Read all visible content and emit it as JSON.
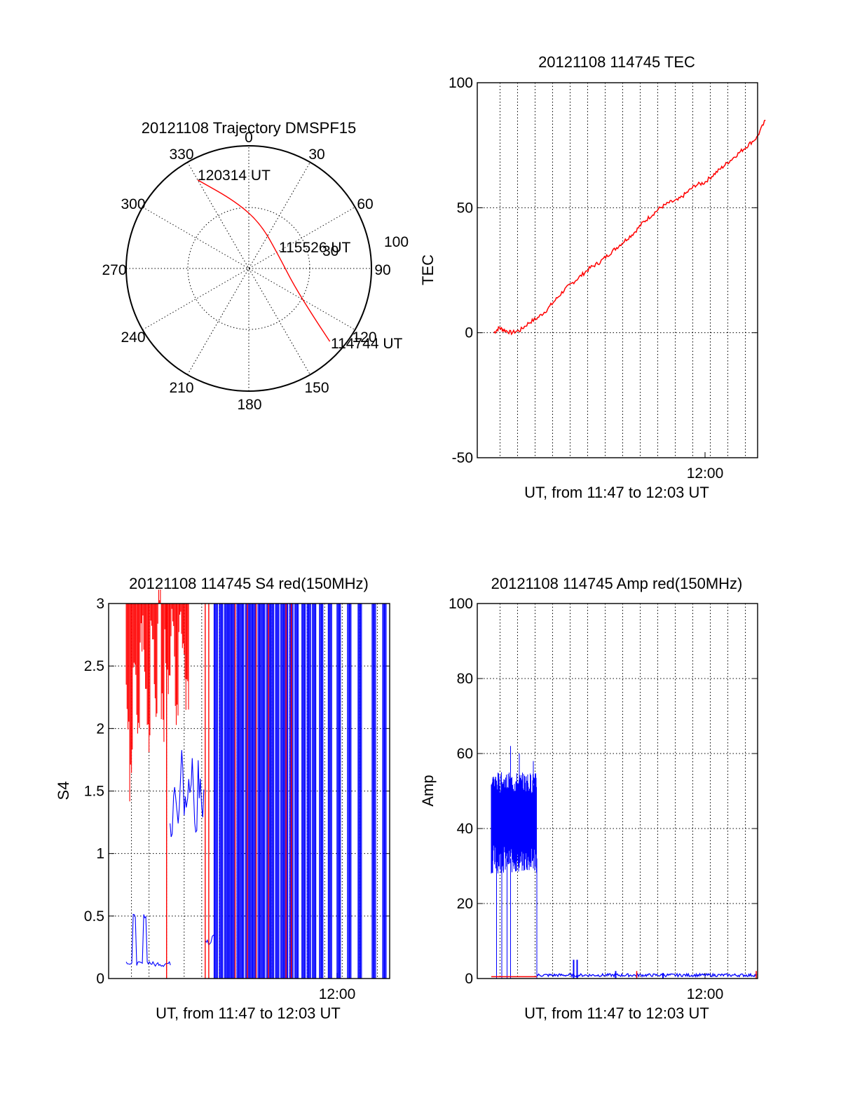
{
  "colors": {
    "red": "#ff0000",
    "blue": "#0000ff",
    "black": "#000000"
  },
  "chart_data": [
    {
      "type": "polar",
      "title": "20121108 Trajectory DMSPF15",
      "azimuth_labels": [
        "0",
        "30",
        "60",
        "90",
        "120",
        "150",
        "180",
        "210",
        "240",
        "270",
        "300",
        "330"
      ],
      "radial_labels": [
        "30",
        "100"
      ],
      "labels": {
        "start": "120314 UT",
        "mid": "115526 UT",
        "end": "114744 UT"
      },
      "trajectory": [
        {
          "az": 330,
          "r": 75
        },
        {
          "az": 349,
          "r": 50
        },
        {
          "az": 15,
          "r": 34
        },
        {
          "az": 70,
          "r": 24
        },
        {
          "az": 110,
          "r": 35
        },
        {
          "az": 127,
          "r": 60
        },
        {
          "az": 132,
          "r": 80
        }
      ]
    },
    {
      "type": "line",
      "title": "20121108 114745 TEC",
      "ylabel": "TEC",
      "xlabel": "UT, from 11:47 to 12:03 UT",
      "ylim": [
        -50,
        100
      ],
      "yticks": [
        "-50",
        "0",
        "50",
        "100"
      ],
      "xtick_label": "12:00",
      "x": [
        0,
        0.3,
        0.6,
        1.0,
        1.5,
        2.0,
        2.5,
        3.0,
        3.5,
        4.0,
        4.5,
        5.0,
        5.5,
        6.0,
        6.5,
        7.0,
        7.5,
        8.0,
        8.5,
        9.0,
        9.5,
        10.0,
        10.5,
        11.0,
        11.5,
        12.0,
        12.5,
        13.0,
        13.5,
        14.0,
        14.5,
        15.0,
        15.5
      ],
      "series": [
        {
          "color": "red",
          "values": [
            0,
            2,
            1,
            0,
            1,
            4,
            6,
            9,
            13,
            17,
            20,
            23,
            26,
            28,
            31,
            34,
            37,
            40,
            44,
            47,
            50,
            52,
            53,
            56,
            59,
            60,
            63,
            66,
            69,
            72,
            75,
            78,
            85
          ]
        }
      ]
    },
    {
      "type": "line",
      "title": "20121108 114745 S4 red(150MHz)",
      "ylabel": "S4",
      "xlabel": "UT, from 11:47 to 12:03 UT",
      "ylim": [
        0,
        3
      ],
      "yticks": [
        "0",
        "0.5",
        "1",
        "1.5",
        "2",
        "2.5",
        "3"
      ],
      "xtick_label": "12:00",
      "series": [
        {
          "color": "blue",
          "segments": [
            {
              "x": [
                0,
                0.2,
                0.4,
                0.6,
                0.8,
                1.0,
                1.2,
                1.4,
                1.6,
                1.8,
                2.0,
                2.2,
                2.4
              ],
              "y": [
                0.13,
                0.12,
                0.5,
                0.12,
                0.12,
                0.5,
                0.13,
                0.12,
                0.11,
                0.12,
                0.11,
                0.12,
                0.12
              ]
            },
            {
              "x": [
                2.5,
                2.7,
                2.9,
                3.1,
                3.3,
                3.5,
                3.7,
                3.9,
                4.1,
                4.3
              ],
              "y": [
                1.3,
                1.6,
                1.4,
                1.7,
                1.3,
                1.5,
                1.65,
                1.2,
                1.6,
                1.4
              ]
            },
            {
              "x": [
                4.5,
                4.7,
                4.9
              ],
              "y": [
                0.3,
                0.28,
                0.35
              ]
            }
          ]
        },
        {
          "color": "blue",
          "spikes_x": [
            5.0,
            5.3,
            5.6,
            5.8,
            6.0,
            6.3,
            6.5,
            6.8,
            7.0,
            7.2,
            7.5,
            7.7,
            8.0,
            8.2,
            8.5,
            8.8,
            9.0,
            9.3,
            9.6,
            10.0,
            10.3,
            10.6,
            11.0,
            11.5,
            12.0,
            12.6,
            13.2,
            14.0,
            14.6,
            15.2
          ]
        },
        {
          "color": "red",
          "upper_x": [
            0,
            0.2,
            0.4,
            0.6,
            0.8,
            1.0,
            1.2,
            1.4,
            1.6,
            1.8,
            2.0,
            2.2,
            2.4,
            2.6,
            2.8,
            3.0,
            3.2,
            3.4
          ],
          "upper_y": [
            2.2,
            1.6,
            2.6,
            1.9,
            2.8,
            2.4,
            2.0,
            2.7,
            2.3,
            2.9,
            2.1,
            2.6,
            2.5,
            2.8,
            2.2,
            2.9,
            2.6,
            2.4
          ]
        },
        {
          "color": "red",
          "spikes_x": [
            2.3,
            4.5,
            4.7,
            6.2,
            6.9,
            7.4,
            8.1,
            9.1,
            9.4,
            15.3,
            15.5
          ]
        }
      ]
    },
    {
      "type": "line",
      "title": "20121108 114745 Amp red(150MHz)",
      "ylabel": "Amp",
      "xlabel": "UT, from 11:47 to 12:03 UT",
      "ylim": [
        0,
        100
      ],
      "yticks": [
        "0",
        "20",
        "40",
        "60",
        "80",
        "100"
      ],
      "xtick_label": "12:00",
      "series": [
        {
          "color": "blue",
          "band": {
            "x0": 0,
            "x1": 2.6,
            "low": 32,
            "high": 52
          },
          "peaks": [
            {
              "x": 1.1,
              "y": 62
            },
            {
              "x": 1.6,
              "y": 60
            },
            {
              "x": 2.4,
              "y": 58
            }
          ],
          "drops_x": [
            0.3,
            0.6,
            0.9,
            1.1
          ],
          "baseline": 0.5,
          "bumps": [
            {
              "x": 4.7,
              "y": 5
            },
            {
              "x": 4.9,
              "y": 5
            },
            {
              "x": 7.1,
              "y": 2
            },
            {
              "x": 9.8,
              "y": 1.5
            }
          ]
        },
        {
          "color": "red",
          "baseline": 0.5,
          "bumps": [
            {
              "x": 8.3,
              "y": 2
            },
            {
              "x": 15.5,
              "y": 2
            }
          ]
        }
      ]
    }
  ]
}
